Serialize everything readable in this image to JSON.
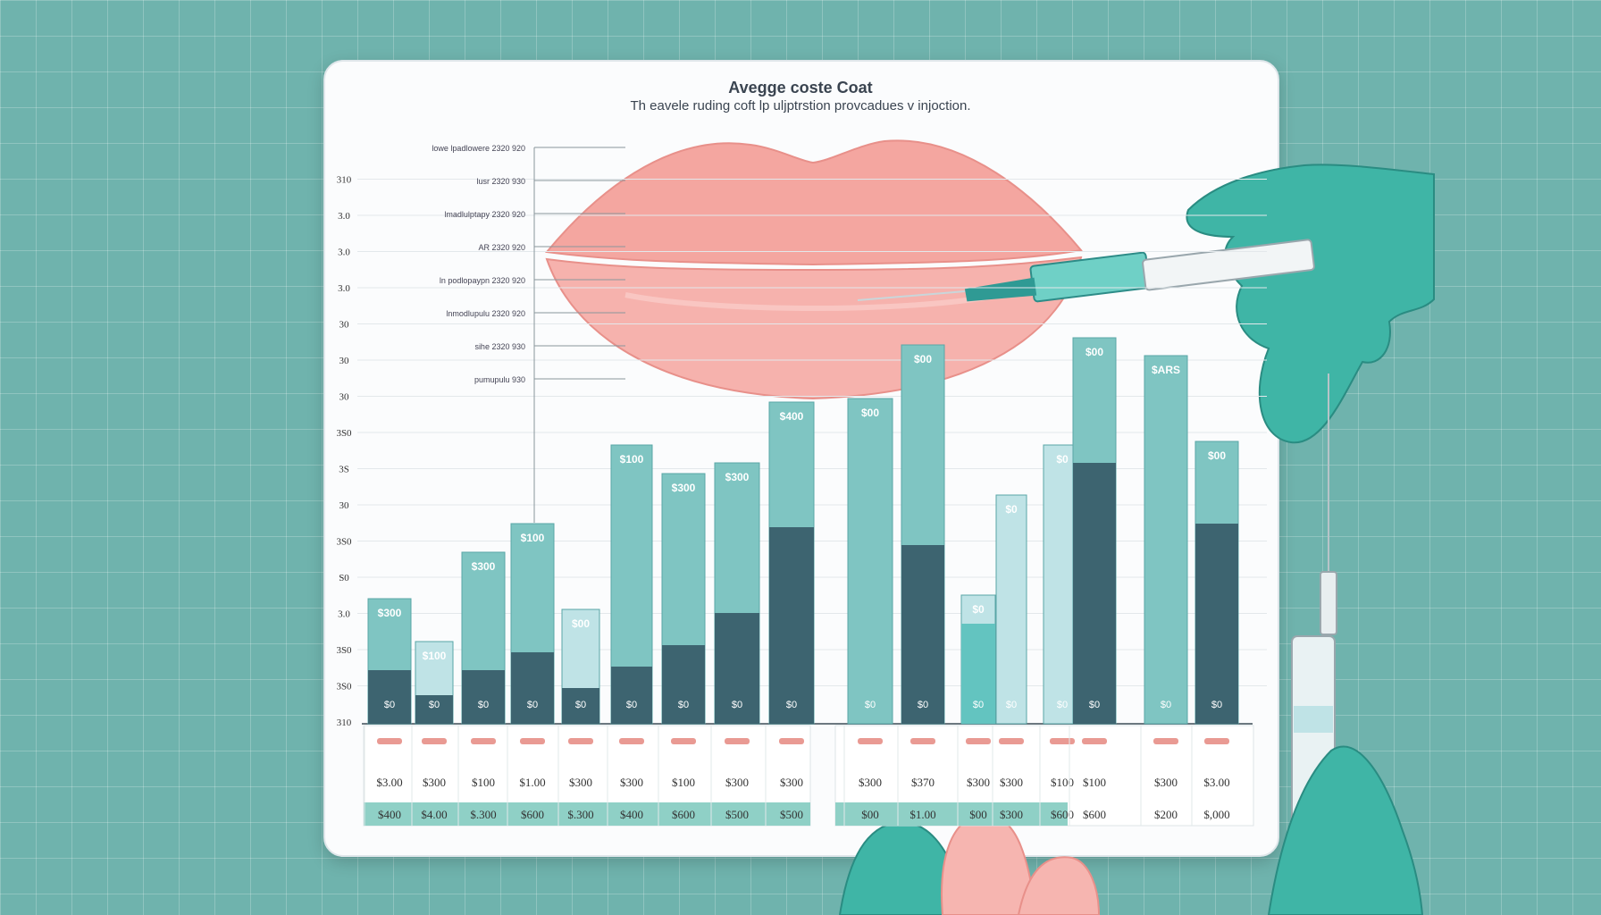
{
  "chart_data": {
    "type": "bar",
    "title": "Avegge coste Coat",
    "subtitle": "Th eavele ruding coft lp uljptrstion provcadues v injoction.",
    "y_ticks": [
      "310",
      "3S0",
      "3S0",
      "3.0",
      "S0",
      "3S0",
      "30",
      "3S",
      "3S0",
      "30",
      "30",
      "30",
      "3.0",
      "3.0",
      "3.0",
      "310"
    ],
    "callouts": [
      "lowe lpadlowere 2320 920",
      "lusr 2320 930",
      "lmadlulptapy 2320 920",
      "AR 2320 920",
      "ln podlopaypn 2320 920",
      "lnmodlupulu 2320 920",
      "sihe 2320 930",
      "pumupulu 930"
    ],
    "bars": [
      {
        "total": 35,
        "lower": 15,
        "top_label": "$300",
        "low_label": "$0"
      },
      {
        "total": 23,
        "lower": 8,
        "top_label": "$100",
        "low_label": "$0"
      },
      {
        "total": 48,
        "lower": 15,
        "top_label": "$300",
        "low_label": "$0"
      },
      {
        "total": 56,
        "lower": 20,
        "top_label": "$100",
        "low_label": "$0"
      },
      {
        "total": 32,
        "lower": 10,
        "top_label": "$00",
        "low_label": "$0"
      },
      {
        "total": 78,
        "lower": 16,
        "top_label": "$100",
        "low_label": "$0"
      },
      {
        "total": 70,
        "lower": 22,
        "top_label": "$300",
        "low_label": "$0"
      },
      {
        "total": 73,
        "lower": 31,
        "top_label": "$300",
        "low_label": "$0"
      },
      {
        "total": 90,
        "lower": 55,
        "top_label": "$400",
        "low_label": "$0"
      },
      {
        "total": 91,
        "lower": 0,
        "top_label": "$00",
        "low_label": "$0"
      },
      {
        "total": 106,
        "lower": 50,
        "top_label": "$00",
        "low_label": "$0"
      },
      {
        "total": 36,
        "lower": 28,
        "top_label": "$0",
        "low_label": "$0"
      },
      {
        "total": 64,
        "lower": 0,
        "top_label": "$0",
        "low_label": "$0"
      },
      {
        "total": 78,
        "lower": 0,
        "top_label": "$0",
        "low_label": "$0"
      },
      {
        "total": 108,
        "lower": 73,
        "top_label": "$00",
        "low_label": "$0"
      },
      {
        "total": 103,
        "lower": 0,
        "top_label": "$ARS",
        "low_label": "$0"
      },
      {
        "total": 79,
        "lower": 56,
        "top_label": "$00",
        "low_label": "$0"
      }
    ],
    "row1": [
      "$3.00",
      "$300",
      "$100",
      "$1.00",
      "$300",
      "$300",
      "$100",
      "$300",
      "$300",
      "$300",
      "$370",
      "$300",
      "$300",
      "$100",
      "$100",
      "$300",
      "$3.00"
    ],
    "row2": [
      "$400",
      "$4.00",
      "$.300",
      "$600",
      "$.300",
      "$400",
      "$600",
      "$500",
      "$500",
      "$00",
      "$1.00",
      "$00",
      "$300",
      "$600",
      "$600",
      "$200",
      "$,000"
    ],
    "colors": {
      "light": "#7fc5c2",
      "dark": "#3d6470",
      "pale": "#bfe3e6",
      "mint": "#63c4c0",
      "header": "#e99a93",
      "band": "#8fd0c6"
    }
  }
}
